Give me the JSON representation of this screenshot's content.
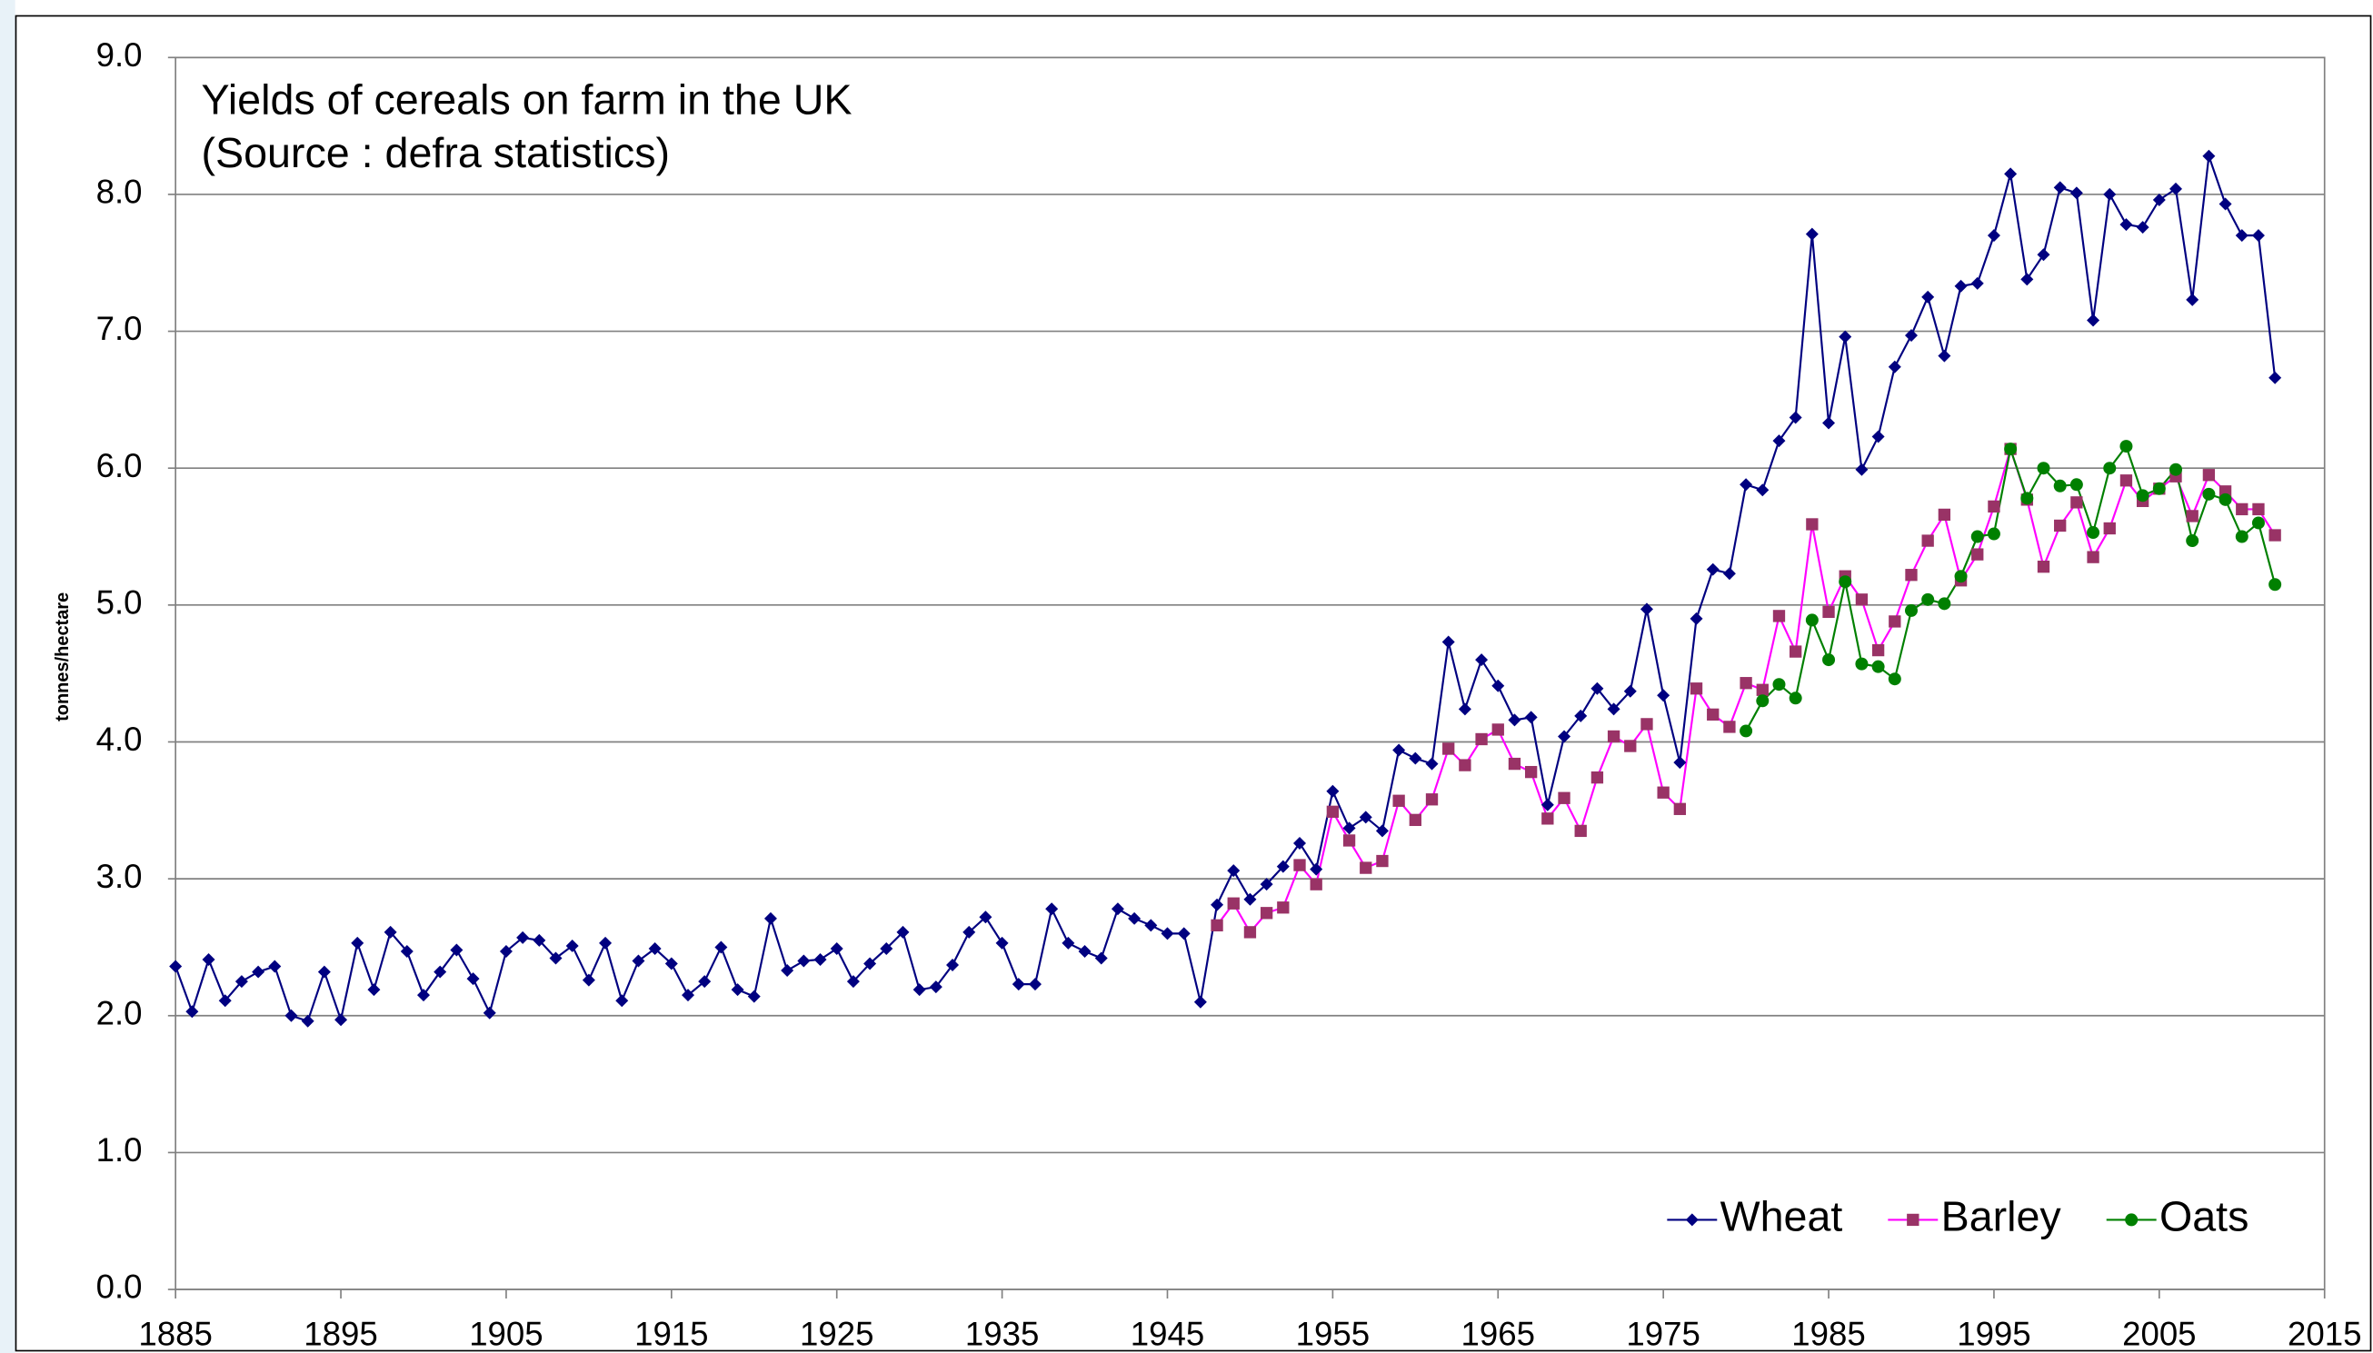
{
  "chart_data": {
    "type": "line",
    "title": "Yields of cereals on farm in the UK",
    "subtitle": "(Source : defra statistics)",
    "y_label": "tonnes/hectare",
    "legend": "lower right",
    "grid": true,
    "xlim": [
      1885,
      2015
    ],
    "xticks": [
      1885,
      1895,
      1905,
      1915,
      1925,
      1935,
      1945,
      1955,
      1965,
      1975,
      1985,
      1995,
      2005,
      2015
    ],
    "ylim": [
      0,
      9
    ],
    "yticks": [
      {
        "value": 0,
        "label": "0.0"
      },
      {
        "value": 1,
        "label": "1.0"
      },
      {
        "value": 2,
        "label": "2.0"
      },
      {
        "value": 3,
        "label": "3.0"
      },
      {
        "value": 4,
        "label": "4.0"
      },
      {
        "value": 5,
        "label": "5.0"
      },
      {
        "value": 6,
        "label": "6.0"
      },
      {
        "value": 7,
        "label": "7.0"
      },
      {
        "value": 8,
        "label": "8.0"
      },
      {
        "value": 9,
        "label": "9.0"
      }
    ],
    "x": [
      1885,
      1886,
      1887,
      1888,
      1889,
      1890,
      1891,
      1892,
      1893,
      1894,
      1895,
      1896,
      1897,
      1898,
      1899,
      1900,
      1901,
      1902,
      1903,
      1904,
      1905,
      1906,
      1907,
      1908,
      1909,
      1910,
      1911,
      1912,
      1913,
      1914,
      1915,
      1916,
      1917,
      1918,
      1919,
      1920,
      1921,
      1922,
      1923,
      1924,
      1925,
      1926,
      1927,
      1928,
      1929,
      1930,
      1931,
      1932,
      1933,
      1934,
      1935,
      1936,
      1937,
      1938,
      1939,
      1940,
      1941,
      1942,
      1943,
      1944,
      1945,
      1946,
      1947,
      1948,
      1949,
      1950,
      1951,
      1952,
      1953,
      1954,
      1955,
      1956,
      1957,
      1958,
      1959,
      1960,
      1961,
      1962,
      1963,
      1964,
      1965,
      1966,
      1967,
      1968,
      1969,
      1970,
      1971,
      1972,
      1973,
      1974,
      1975,
      1976,
      1977,
      1978,
      1979,
      1980,
      1981,
      1982,
      1983,
      1984,
      1985,
      1986,
      1987,
      1988,
      1989,
      1990,
      1991,
      1992,
      1993,
      1994,
      1995,
      1996,
      1997,
      1998,
      1999,
      2000,
      2001,
      2002,
      2003,
      2004,
      2005,
      2006,
      2007,
      2008,
      2009,
      2010,
      2011,
      2012
    ],
    "series": [
      {
        "name": "Wheat",
        "color": "#000080",
        "marker_color": "#000080",
        "marker": "diamond",
        "values": [
          2.36,
          2.03,
          2.41,
          2.11,
          2.25,
          2.32,
          2.36,
          2.0,
          1.96,
          2.32,
          1.97,
          2.53,
          2.19,
          2.61,
          2.47,
          2.15,
          2.32,
          2.48,
          2.27,
          2.02,
          2.47,
          2.57,
          2.55,
          2.42,
          2.51,
          2.26,
          2.53,
          2.11,
          2.4,
          2.49,
          2.38,
          2.15,
          2.25,
          2.5,
          2.19,
          2.14,
          2.71,
          2.33,
          2.4,
          2.41,
          2.49,
          2.25,
          2.38,
          2.49,
          2.61,
          2.19,
          2.21,
          2.37,
          2.61,
          2.72,
          2.53,
          2.23,
          2.23,
          2.78,
          2.53,
          2.47,
          2.42,
          2.78,
          2.71,
          2.66,
          2.6,
          2.6,
          2.1,
          2.81,
          3.06,
          2.85,
          2.96,
          3.09,
          3.26,
          3.07,
          3.64,
          3.37,
          3.45,
          3.35,
          3.94,
          3.88,
          3.84,
          4.73,
          4.24,
          4.6,
          4.41,
          4.16,
          4.18,
          3.54,
          4.04,
          4.19,
          4.39,
          4.24,
          4.37,
          4.97,
          4.34,
          3.85,
          4.9,
          5.26,
          5.23,
          5.88,
          5.84,
          6.2,
          6.37,
          7.71,
          6.33,
          6.96,
          5.99,
          6.23,
          6.74,
          6.97,
          7.25,
          6.82,
          7.33,
          7.35,
          7.7,
          8.15,
          7.38,
          7.56,
          8.05,
          8.01,
          7.08,
          8.0,
          7.78,
          7.76,
          7.96,
          8.04,
          7.23,
          8.28,
          7.93,
          7.7,
          7.7,
          6.66
        ]
      },
      {
        "name": "Barley",
        "color": "#ff00ff",
        "marker_color": "#993366",
        "marker": "square",
        "values": [
          null,
          null,
          null,
          null,
          null,
          null,
          null,
          null,
          null,
          null,
          null,
          null,
          null,
          null,
          null,
          null,
          null,
          null,
          null,
          null,
          null,
          null,
          null,
          null,
          null,
          null,
          null,
          null,
          null,
          null,
          null,
          null,
          null,
          null,
          null,
          null,
          null,
          null,
          null,
          null,
          null,
          null,
          null,
          null,
          null,
          null,
          null,
          null,
          null,
          null,
          null,
          null,
          null,
          null,
          null,
          null,
          null,
          null,
          null,
          null,
          null,
          null,
          null,
          2.66,
          2.82,
          2.61,
          2.75,
          2.79,
          3.1,
          2.96,
          3.49,
          3.28,
          3.08,
          3.13,
          3.57,
          3.43,
          3.58,
          3.95,
          3.83,
          4.02,
          4.09,
          3.84,
          3.78,
          3.44,
          3.59,
          3.35,
          3.74,
          4.04,
          3.97,
          4.13,
          3.63,
          3.51,
          4.39,
          4.2,
          4.11,
          4.43,
          4.38,
          4.92,
          4.66,
          5.59,
          4.95,
          5.21,
          5.04,
          4.67,
          4.88,
          5.22,
          5.47,
          5.66,
          5.18,
          5.37,
          5.72,
          6.14,
          5.77,
          5.28,
          5.58,
          5.75,
          5.35,
          5.56,
          5.91,
          5.76,
          5.85,
          5.94,
          5.65,
          5.95,
          5.83,
          5.7,
          5.7,
          5.51
        ]
      },
      {
        "name": "Oats",
        "color": "#008000",
        "marker_color": "#008000",
        "marker": "circle",
        "values": [
          null,
          null,
          null,
          null,
          null,
          null,
          null,
          null,
          null,
          null,
          null,
          null,
          null,
          null,
          null,
          null,
          null,
          null,
          null,
          null,
          null,
          null,
          null,
          null,
          null,
          null,
          null,
          null,
          null,
          null,
          null,
          null,
          null,
          null,
          null,
          null,
          null,
          null,
          null,
          null,
          null,
          null,
          null,
          null,
          null,
          null,
          null,
          null,
          null,
          null,
          null,
          null,
          null,
          null,
          null,
          null,
          null,
          null,
          null,
          null,
          null,
          null,
          null,
          null,
          null,
          null,
          null,
          null,
          null,
          null,
          null,
          null,
          null,
          null,
          null,
          null,
          null,
          null,
          null,
          null,
          null,
          null,
          null,
          null,
          null,
          null,
          null,
          null,
          null,
          null,
          null,
          null,
          null,
          null,
          null,
          4.08,
          4.3,
          4.42,
          4.32,
          4.89,
          4.6,
          5.17,
          4.57,
          4.55,
          4.46,
          4.96,
          5.04,
          5.01,
          5.21,
          5.5,
          5.52,
          6.14,
          5.78,
          6.0,
          5.87,
          5.88,
          5.53,
          6.0,
          6.16,
          5.8,
          5.85,
          5.99,
          5.47,
          5.81,
          5.77,
          5.5,
          5.6,
          5.15
        ]
      }
    ]
  }
}
